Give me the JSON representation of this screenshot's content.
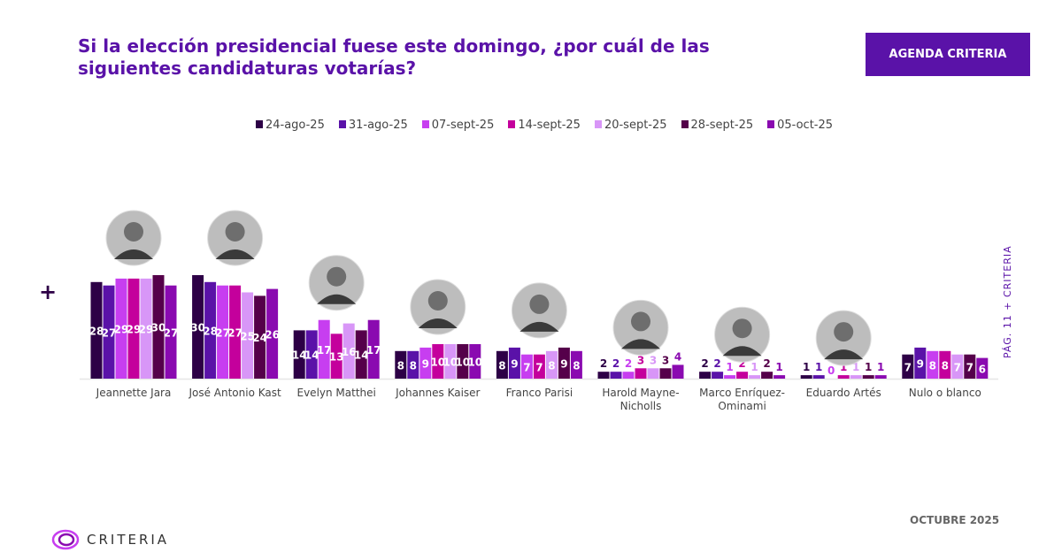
{
  "title": "Si la elección presidencial fuese este domingo, ¿por cuál de las siguientes candidaturas votarías?",
  "brand_button": "AGENDA CRITERIA",
  "side_label": "PÁG. 11   +   CRITERIA",
  "footer_date": "OCTUBRE 2025",
  "logo_text": "CRITERIA",
  "chart_data": {
    "type": "bar",
    "categories": [
      "Jeannette Jara",
      "José Antonio Kast",
      "Evelyn Matthei",
      "Johannes Kaiser",
      "Franco Parisi",
      "Harold Mayne-Nicholls",
      "Marco Enríquez-Ominami",
      "Eduardo Artés",
      "Nulo o blanco"
    ],
    "series": [
      {
        "name": "24-ago-25",
        "color": "#2d0046",
        "values": [
          28,
          30,
          14,
          8,
          8,
          2,
          2,
          1,
          7
        ]
      },
      {
        "name": "31-ago-25",
        "color": "#5a12a8",
        "values": [
          27,
          28,
          14,
          8,
          9,
          2,
          2,
          1,
          9
        ]
      },
      {
        "name": "07-sept-25",
        "color": "#c73ef0",
        "values": [
          29,
          27,
          17,
          9,
          7,
          2,
          1,
          0,
          8
        ]
      },
      {
        "name": "14-sept-25",
        "color": "#c4009c",
        "values": [
          29,
          27,
          13,
          10,
          7,
          3,
          2,
          1,
          8
        ]
      },
      {
        "name": "20-sept-25",
        "color": "#d896f7",
        "values": [
          29,
          25,
          16,
          10,
          8,
          3,
          1,
          1,
          7
        ]
      },
      {
        "name": "28-sept-25",
        "color": "#55004a",
        "values": [
          30,
          24,
          14,
          10,
          9,
          3,
          2,
          1,
          7
        ]
      },
      {
        "name": "05-oct-25",
        "color": "#8a0ab0",
        "values": [
          27,
          26,
          17,
          10,
          8,
          4,
          1,
          1,
          6
        ]
      }
    ],
    "legend": "top",
    "grid": false
  }
}
